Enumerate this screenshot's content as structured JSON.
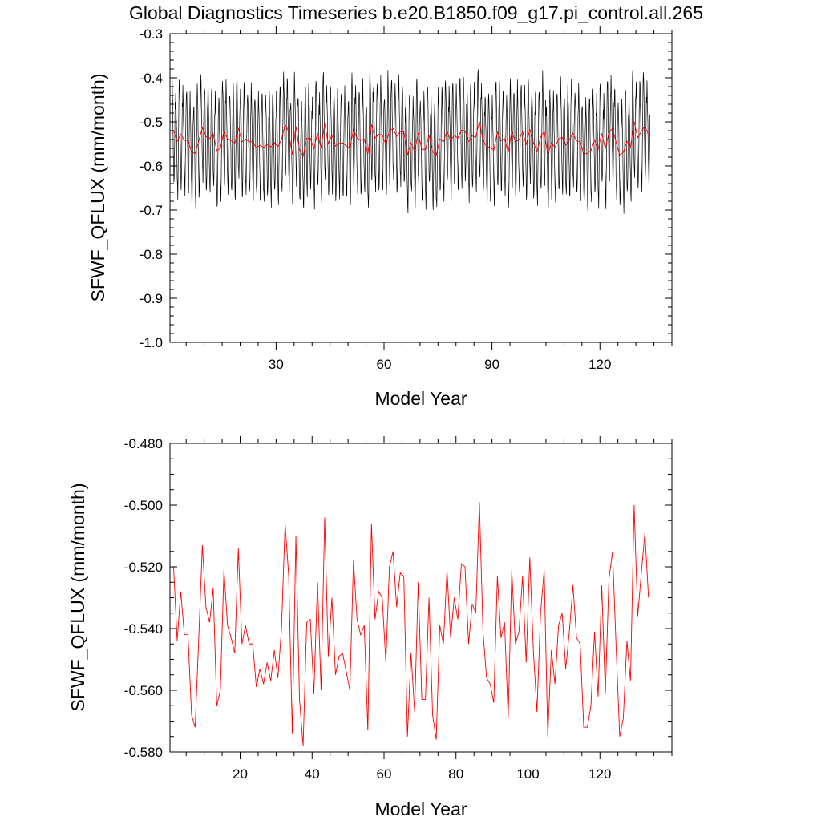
{
  "figure": {
    "title": "Global Diagnostics Timeseries b.e20.B1850.f09_g17.pi_control.all.265"
  },
  "colors": {
    "monthly_series": "#000000",
    "annual_series": "#ff0000",
    "frame": "#000000",
    "background": "#ffffff"
  },
  "chart_data": [
    {
      "type": "line",
      "panel": "top",
      "title": "Global Diagnostics Timeseries b.e20.B1850.f09_g17.pi_control.all.265",
      "xlabel": "Model Year",
      "ylabel": "SFWF_QFLUX (mm/month)",
      "xlim": [
        0.5,
        140
      ],
      "ylim": [
        -1.0,
        -0.3
      ],
      "x_ticks": [
        30,
        60,
        90,
        120
      ],
      "x_tick_labels": [
        "30",
        "60",
        "90",
        "120"
      ],
      "y_ticks": [
        -1.0,
        -0.9,
        -0.8,
        -0.7,
        -0.6,
        -0.5,
        -0.4,
        -0.3
      ],
      "y_tick_labels": [
        "-1.0",
        "-0.9",
        "-0.8",
        "-0.7",
        "-0.6",
        "-0.5",
        "-0.4",
        "-0.3"
      ],
      "grid": false,
      "legend": "none",
      "series": [
        {
          "color": "#000000",
          "kind": "monthly",
          "x_start": 1.0,
          "x_step": 0.08333,
          "annual_means": [
            -0.52,
            -0.544,
            -0.528,
            -0.542,
            -0.542,
            -0.568,
            -0.572,
            -0.543,
            -0.513,
            -0.533,
            -0.538,
            -0.527,
            -0.565,
            -0.56,
            -0.521,
            -0.539,
            -0.543,
            -0.548,
            -0.514,
            -0.545,
            -0.539,
            -0.545,
            -0.545,
            -0.559,
            -0.553,
            -0.558,
            -0.551,
            -0.557,
            -0.547,
            -0.556,
            -0.54,
            -0.506,
            -0.523,
            -0.574,
            -0.51,
            -0.563,
            -0.578,
            -0.538,
            -0.537,
            -0.561,
            -0.525,
            -0.56,
            -0.504,
            -0.549,
            -0.53,
            -0.555,
            -0.549,
            -0.548,
            -0.554,
            -0.56,
            -0.518,
            -0.537,
            -0.542,
            -0.539,
            -0.573,
            -0.506,
            -0.537,
            -0.528,
            -0.53,
            -0.551,
            -0.52,
            -0.515,
            -0.533,
            -0.522,
            -0.523,
            -0.575,
            -0.548,
            -0.567,
            -0.525,
            -0.563,
            -0.563,
            -0.53,
            -0.568,
            -0.576,
            -0.539,
            -0.545,
            -0.521,
            -0.543,
            -0.53,
            -0.537,
            -0.519,
            -0.52,
            -0.545,
            -0.532,
            -0.535,
            -0.499,
            -0.541,
            -0.556,
            -0.558,
            -0.564,
            -0.523,
            -0.543,
            -0.538,
            -0.569,
            -0.521,
            -0.545,
            -0.541,
            -0.523,
            -0.551,
            -0.517,
            -0.547,
            -0.567,
            -0.535,
            -0.521,
            -0.575,
            -0.547,
            -0.558,
            -0.539,
            -0.535,
            -0.553,
            -0.541,
            -0.526,
            -0.543,
            -0.545,
            -0.572,
            -0.572,
            -0.565,
            -0.541,
            -0.562,
            -0.526,
            -0.561,
            -0.524,
            -0.515,
            -0.546,
            -0.575,
            -0.569,
            -0.544,
            -0.557,
            -0.5,
            -0.536,
            -0.522,
            -0.509,
            -0.53
          ],
          "seasonal_anomaly": [
            0.085,
            0.12,
            0.1,
            0.06,
            0.015,
            -0.035,
            -0.08,
            -0.11,
            -0.12,
            -0.07,
            -0.005,
            0.055
          ]
        },
        {
          "color": "#ff0000",
          "kind": "annual",
          "x_start": 1.5,
          "values": [
            -0.52,
            -0.544,
            -0.528,
            -0.542,
            -0.542,
            -0.568,
            -0.572,
            -0.543,
            -0.513,
            -0.533,
            -0.538,
            -0.527,
            -0.565,
            -0.56,
            -0.521,
            -0.539,
            -0.543,
            -0.548,
            -0.514,
            -0.545,
            -0.539,
            -0.545,
            -0.545,
            -0.559,
            -0.553,
            -0.558,
            -0.551,
            -0.557,
            -0.547,
            -0.556,
            -0.54,
            -0.506,
            -0.523,
            -0.574,
            -0.51,
            -0.563,
            -0.578,
            -0.538,
            -0.537,
            -0.561,
            -0.525,
            -0.56,
            -0.504,
            -0.549,
            -0.53,
            -0.555,
            -0.549,
            -0.548,
            -0.554,
            -0.56,
            -0.518,
            -0.537,
            -0.542,
            -0.539,
            -0.573,
            -0.506,
            -0.537,
            -0.528,
            -0.53,
            -0.551,
            -0.52,
            -0.515,
            -0.533,
            -0.522,
            -0.523,
            -0.575,
            -0.548,
            -0.567,
            -0.525,
            -0.563,
            -0.563,
            -0.53,
            -0.568,
            -0.576,
            -0.539,
            -0.545,
            -0.521,
            -0.543,
            -0.53,
            -0.537,
            -0.519,
            -0.52,
            -0.545,
            -0.532,
            -0.535,
            -0.499,
            -0.541,
            -0.556,
            -0.558,
            -0.564,
            -0.523,
            -0.543,
            -0.538,
            -0.569,
            -0.521,
            -0.545,
            -0.541,
            -0.523,
            -0.551,
            -0.517,
            -0.547,
            -0.567,
            -0.535,
            -0.521,
            -0.575,
            -0.547,
            -0.558,
            -0.539,
            -0.535,
            -0.553,
            -0.541,
            -0.526,
            -0.543,
            -0.545,
            -0.572,
            -0.572,
            -0.565,
            -0.541,
            -0.562,
            -0.526,
            -0.561,
            -0.524,
            -0.515,
            -0.546,
            -0.575,
            -0.569,
            -0.544,
            -0.557,
            -0.5,
            -0.536,
            -0.522,
            -0.509,
            -0.53
          ]
        }
      ]
    },
    {
      "type": "line",
      "panel": "bottom",
      "xlabel": "Model Year",
      "ylabel": "SFWF_QFLUX (mm/month)",
      "xlim": [
        0.5,
        140
      ],
      "ylim": [
        -0.58,
        -0.48
      ],
      "x_ticks": [
        20,
        40,
        60,
        80,
        100,
        120
      ],
      "x_tick_labels": [
        "20",
        "40",
        "60",
        "80",
        "100",
        "120"
      ],
      "y_ticks": [
        -0.58,
        -0.56,
        -0.54,
        -0.52,
        -0.5,
        -0.48
      ],
      "y_tick_labels": [
        "-0.580",
        "-0.560",
        "-0.540",
        "-0.520",
        "-0.500",
        "-0.480"
      ],
      "grid": false,
      "legend": "none",
      "series": [
        {
          "color": "#ff0000",
          "kind": "annual",
          "x_start": 1.5,
          "values": [
            -0.52,
            -0.544,
            -0.528,
            -0.542,
            -0.542,
            -0.568,
            -0.572,
            -0.543,
            -0.513,
            -0.533,
            -0.538,
            -0.527,
            -0.565,
            -0.56,
            -0.521,
            -0.539,
            -0.543,
            -0.548,
            -0.514,
            -0.545,
            -0.539,
            -0.545,
            -0.545,
            -0.559,
            -0.553,
            -0.558,
            -0.551,
            -0.557,
            -0.547,
            -0.556,
            -0.54,
            -0.506,
            -0.523,
            -0.574,
            -0.51,
            -0.563,
            -0.578,
            -0.538,
            -0.537,
            -0.561,
            -0.525,
            -0.56,
            -0.504,
            -0.549,
            -0.53,
            -0.555,
            -0.549,
            -0.548,
            -0.554,
            -0.56,
            -0.518,
            -0.537,
            -0.542,
            -0.539,
            -0.573,
            -0.506,
            -0.537,
            -0.528,
            -0.53,
            -0.551,
            -0.52,
            -0.515,
            -0.533,
            -0.522,
            -0.523,
            -0.575,
            -0.548,
            -0.567,
            -0.525,
            -0.563,
            -0.563,
            -0.53,
            -0.568,
            -0.576,
            -0.539,
            -0.545,
            -0.521,
            -0.543,
            -0.53,
            -0.537,
            -0.519,
            -0.52,
            -0.545,
            -0.532,
            -0.535,
            -0.499,
            -0.541,
            -0.556,
            -0.558,
            -0.564,
            -0.523,
            -0.543,
            -0.538,
            -0.569,
            -0.521,
            -0.545,
            -0.541,
            -0.523,
            -0.551,
            -0.517,
            -0.547,
            -0.567,
            -0.535,
            -0.521,
            -0.575,
            -0.547,
            -0.558,
            -0.539,
            -0.535,
            -0.553,
            -0.541,
            -0.526,
            -0.543,
            -0.545,
            -0.572,
            -0.572,
            -0.565,
            -0.541,
            -0.562,
            -0.526,
            -0.561,
            -0.524,
            -0.515,
            -0.546,
            -0.575,
            -0.569,
            -0.544,
            -0.557,
            -0.5,
            -0.536,
            -0.522,
            -0.509,
            -0.53
          ]
        }
      ]
    }
  ]
}
